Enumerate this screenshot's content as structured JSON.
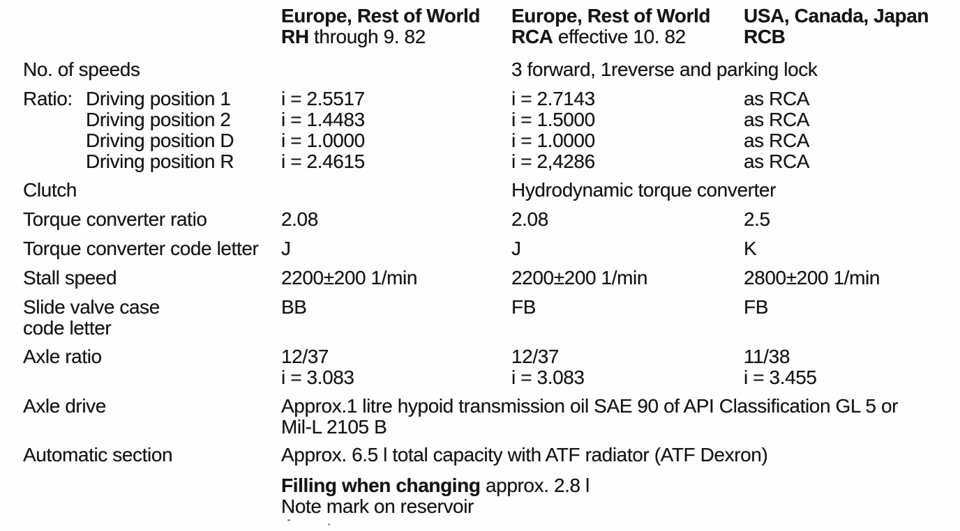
{
  "header": {
    "col_rh": {
      "region": "Europe, Rest of World",
      "code": "RH",
      "detail": "through 9. 82"
    },
    "col_rca": {
      "region": "Europe, Rest of World",
      "code": "RCA",
      "detail": "effective 10. 82"
    },
    "col_rcb": {
      "region": "USA, Canada, Japan",
      "code": "RCB",
      "detail": ""
    }
  },
  "rows": {
    "speeds": {
      "label": "No. of speeds",
      "value": "3 forward, 1reverse and parking lock"
    },
    "ratio": {
      "prefix": "Ratio:",
      "items": [
        {
          "name": "Driving position 1",
          "rh": "i = 2.5517",
          "rca": "i = 2.7143",
          "rcb": "as RCA"
        },
        {
          "name": "Driving position 2",
          "rh": "i = 1.4483",
          "rca": "i = 1.5000",
          "rcb": "as RCA"
        },
        {
          "name": "Driving position D",
          "rh": "i = 1.0000",
          "rca": "i = 1.0000",
          "rcb": "as RCA"
        },
        {
          "name": "Driving position R",
          "rh": "i = 2.4615",
          "rca": "i = 2,4286",
          "rcb": "as RCA"
        }
      ]
    },
    "clutch": {
      "label": "Clutch",
      "value": "Hydrodynamic torque converter"
    },
    "torque_ratio": {
      "label": "Torque converter ratio",
      "rh": "2.08",
      "rca": "2.08",
      "rcb": "2.5"
    },
    "torque_code": {
      "label": "Torque converter code letter",
      "rh": "J",
      "rca": "J",
      "rcb": "K"
    },
    "stall_speed": {
      "label": "Stall speed",
      "rh": "2200±200 1/min",
      "rca": "2200±200 1/min",
      "rcb": "2800±200 1/min"
    },
    "slide_valve": {
      "label_line1": "Slide valve case",
      "label_line2": "code letter",
      "rh": "BB",
      "rca": "FB",
      "rcb": "FB"
    },
    "axle_ratio": {
      "label": "Axle ratio",
      "rh": {
        "line1": "12/37",
        "line2": "i = 3.083"
      },
      "rca": {
        "line1": "12/37",
        "line2": "i = 3.083"
      },
      "rcb": {
        "line1": "11/38",
        "line2": "i = 3.455"
      }
    },
    "axle_drive": {
      "label": "Axle drive",
      "value_line1": "Approx.1 litre hypoid transmission oil SAE 90 of API Classification GL 5 or",
      "value_line2": "Mil-L 2105 B"
    },
    "automatic_section": {
      "label": "Automatic section",
      "value": "Approx. 6.5 l total capacity with ATF radiator (ATF Dexron)"
    },
    "filling": {
      "bold": "Filling when changing",
      "rest": "approx. 2.8 l",
      "note": "Note mark on reservoir"
    }
  }
}
